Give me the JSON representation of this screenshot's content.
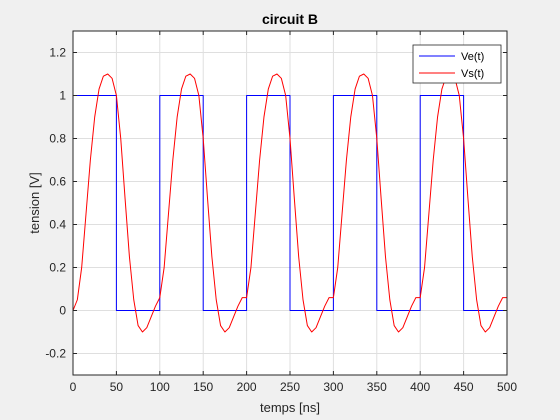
{
  "chart_data": {
    "type": "line",
    "title": "circuit B",
    "xlabel": "temps [ns]",
    "ylabel": "tension [V]",
    "xlim": [
      0,
      500
    ],
    "ylim": [
      -0.3,
      1.3
    ],
    "xticks": [
      "0",
      "50",
      "100",
      "150",
      "200",
      "250",
      "300",
      "350",
      "400",
      "450",
      "500"
    ],
    "yticks": [
      "-0.2",
      "0",
      "0.2",
      "0.4",
      "0.6",
      "0.8",
      "1",
      "1.2"
    ],
    "grid": true,
    "legend_position": "top-right",
    "series": [
      {
        "name": "Ve(t)",
        "color": "#0000ff",
        "x": [
          0,
          50,
          50,
          100,
          100,
          150,
          150,
          200,
          200,
          250,
          250,
          300,
          300,
          350,
          350,
          400,
          400,
          450,
          450,
          500
        ],
        "y": [
          1,
          1,
          0,
          0,
          1,
          1,
          0,
          0,
          1,
          1,
          0,
          0,
          1,
          1,
          0,
          0,
          1,
          1,
          0,
          0
        ]
      },
      {
        "name": "Vs(t)",
        "color": "#ff0000",
        "x": [
          0,
          5,
          10,
          15,
          20,
          25,
          30,
          35,
          40,
          45,
          50,
          55,
          60,
          65,
          70,
          75,
          80,
          85,
          90,
          95,
          100,
          105,
          110,
          115,
          120,
          125,
          130,
          135,
          140,
          145,
          150,
          155,
          160,
          165,
          170,
          175,
          180,
          185,
          190,
          195,
          200,
          205,
          210,
          215,
          220,
          225,
          230,
          235,
          240,
          245,
          250,
          255,
          260,
          265,
          270,
          275,
          280,
          285,
          290,
          295,
          300,
          305,
          310,
          315,
          320,
          325,
          330,
          335,
          340,
          345,
          350,
          355,
          360,
          365,
          370,
          375,
          380,
          385,
          390,
          395,
          400,
          405,
          410,
          415,
          420,
          425,
          430,
          435,
          440,
          445,
          450,
          455,
          460,
          465,
          470,
          475,
          480,
          485,
          490,
          495,
          500
        ],
        "y": [
          0,
          0.05,
          0.2,
          0.45,
          0.7,
          0.9,
          1.03,
          1.09,
          1.1,
          1.08,
          1.0,
          0.8,
          0.52,
          0.25,
          0.05,
          -0.07,
          -0.1,
          -0.08,
          -0.03,
          0.02,
          0.06,
          0.2,
          0.45,
          0.7,
          0.9,
          1.03,
          1.09,
          1.1,
          1.08,
          1.0,
          0.8,
          0.52,
          0.25,
          0.05,
          -0.07,
          -0.1,
          -0.08,
          -0.03,
          0.02,
          0.06,
          0.06,
          0.2,
          0.45,
          0.7,
          0.9,
          1.03,
          1.09,
          1.1,
          1.08,
          1.0,
          0.8,
          0.52,
          0.25,
          0.05,
          -0.07,
          -0.1,
          -0.08,
          -0.03,
          0.02,
          0.06,
          0.06,
          0.2,
          0.45,
          0.7,
          0.9,
          1.03,
          1.09,
          1.1,
          1.08,
          1.0,
          0.8,
          0.52,
          0.25,
          0.05,
          -0.07,
          -0.1,
          -0.08,
          -0.03,
          0.02,
          0.06,
          0.06,
          0.2,
          0.45,
          0.7,
          0.9,
          1.03,
          1.09,
          1.1,
          1.08,
          1.0,
          0.8,
          0.52,
          0.25,
          0.05,
          -0.07,
          -0.1,
          -0.08,
          -0.03,
          0.02,
          0.06,
          0.06
        ]
      }
    ]
  }
}
